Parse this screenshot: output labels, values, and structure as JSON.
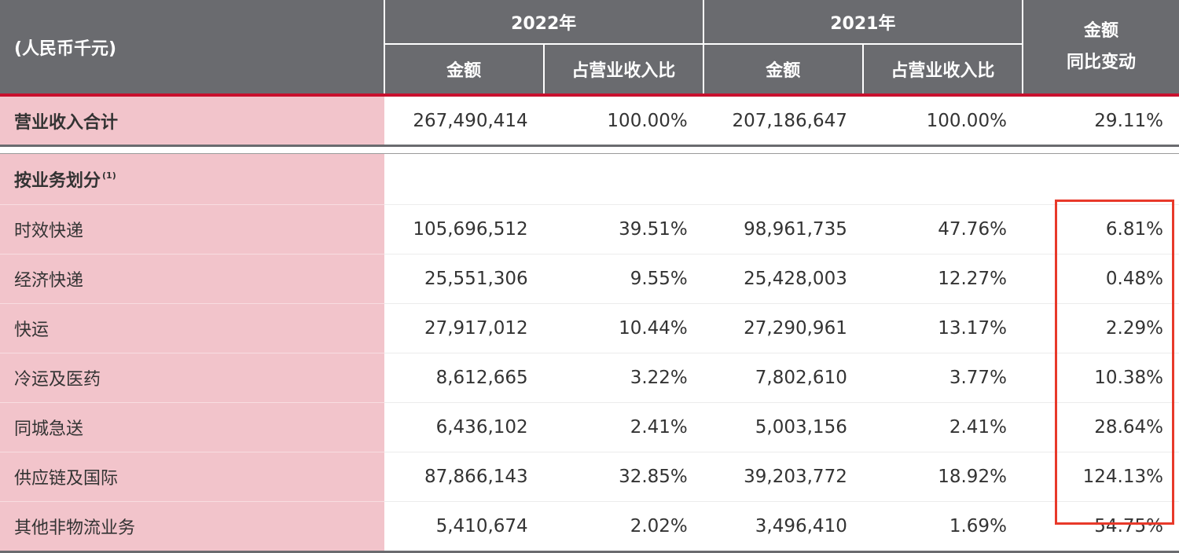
{
  "header": {
    "unit_label": "(人民币千元)",
    "year_2022": "2022年",
    "year_2021": "2021年",
    "change_label_line1": "金额",
    "change_label_line2": "同比变动",
    "amount_label": "金额",
    "ratio_label": "占营业收入比"
  },
  "total_row": {
    "label": "营业收入合计",
    "amount_2022": "267,490,414",
    "ratio_2022": "100.00%",
    "amount_2021": "207,186,647",
    "ratio_2021": "100.00%",
    "change": "29.11%"
  },
  "section": {
    "label": "按业务划分",
    "footnote": "(1)"
  },
  "rows": [
    {
      "label": "时效快递",
      "amount_2022": "105,696,512",
      "ratio_2022": "39.51%",
      "amount_2021": "98,961,735",
      "ratio_2021": "47.76%",
      "change": "6.81%"
    },
    {
      "label": "经济快递",
      "amount_2022": "25,551,306",
      "ratio_2022": "9.55%",
      "amount_2021": "25,428,003",
      "ratio_2021": "12.27%",
      "change": "0.48%"
    },
    {
      "label": "快运",
      "amount_2022": "27,917,012",
      "ratio_2022": "10.44%",
      "amount_2021": "27,290,961",
      "ratio_2021": "13.17%",
      "change": "2.29%"
    },
    {
      "label": "冷运及医药",
      "amount_2022": "8,612,665",
      "ratio_2022": "3.22%",
      "amount_2021": "7,802,610",
      "ratio_2021": "3.77%",
      "change": "10.38%"
    },
    {
      "label": "同城急送",
      "amount_2022": "6,436,102",
      "ratio_2022": "2.41%",
      "amount_2021": "5,003,156",
      "ratio_2021": "2.41%",
      "change": "28.64%"
    },
    {
      "label": "供应链及国际",
      "amount_2022": "87,866,143",
      "ratio_2022": "32.85%",
      "amount_2021": "39,203,772",
      "ratio_2021": "18.92%",
      "change": "124.13%"
    },
    {
      "label": "其他非物流业务",
      "amount_2022": "5,410,674",
      "ratio_2022": "2.02%",
      "amount_2021": "3,496,410",
      "ratio_2021": "1.69%",
      "change": "54.75%"
    }
  ],
  "colors": {
    "header_bg": "#6a6b6f",
    "label_bg": "#f2c4cb",
    "accent_red": "#c8102e",
    "highlight_box": "#e8392a"
  }
}
